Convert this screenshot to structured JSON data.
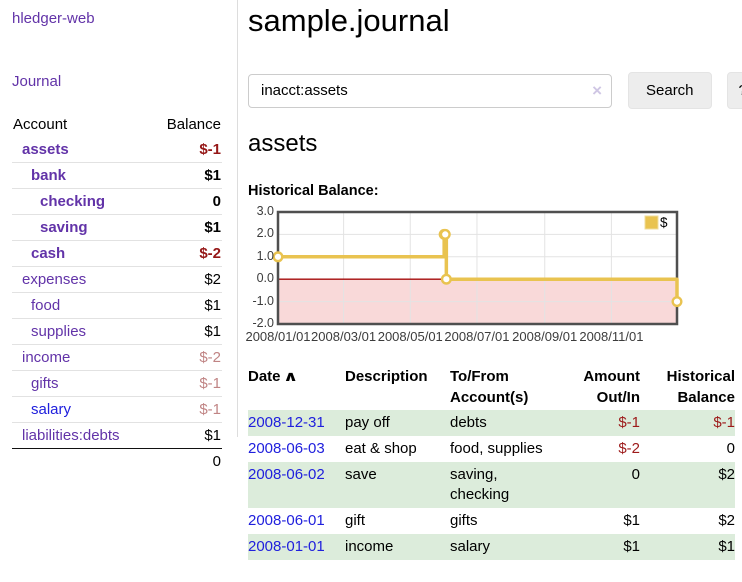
{
  "app": {
    "brand": "hledger-web"
  },
  "sidebar": {
    "nav": {
      "journal": "Journal"
    },
    "columns": {
      "account": "Account",
      "balance": "Balance"
    },
    "accounts": [
      {
        "name": "assets",
        "depth": 1,
        "balance": "$-1",
        "bold": true,
        "negative": "strong"
      },
      {
        "name": "bank",
        "depth": 2,
        "balance": "$1",
        "bold": true,
        "negative": null
      },
      {
        "name": "checking",
        "depth": 3,
        "balance": "0",
        "bold": true,
        "negative": null
      },
      {
        "name": "saving",
        "depth": 3,
        "balance": "$1",
        "bold": true,
        "negative": null
      },
      {
        "name": "cash",
        "depth": 2,
        "balance": "$-2",
        "bold": true,
        "negative": "strong"
      },
      {
        "name": "expenses",
        "depth": 1,
        "balance": "$2",
        "bold": false,
        "negative": null
      },
      {
        "name": "food",
        "depth": 2,
        "balance": "$1",
        "bold": false,
        "negative": null
      },
      {
        "name": "supplies",
        "depth": 2,
        "balance": "$1",
        "bold": false,
        "negative": null
      },
      {
        "name": "income",
        "depth": 1,
        "balance": "$-2",
        "bold": false,
        "negative": "light"
      },
      {
        "name": "gifts",
        "depth": 2,
        "balance": "$-1",
        "bold": false,
        "negative": "light"
      },
      {
        "name": "salary",
        "depth": 2,
        "balance": "$-1",
        "bold": false,
        "negative": "light",
        "link_style": "blue"
      },
      {
        "name": "liabilities:debts",
        "depth": 1,
        "balance": "$1",
        "bold": false,
        "negative": null
      }
    ],
    "total": "0"
  },
  "header": {
    "title": "sample.journal"
  },
  "search": {
    "value": "inacct:assets",
    "clear_icon": "×",
    "button_label": "Search",
    "help_label": "?"
  },
  "account_page": {
    "heading": "assets",
    "chart_label": "Historical Balance:"
  },
  "chart_data": {
    "type": "line",
    "steps": true,
    "title": "Historical Balance:",
    "ylim": [
      -2,
      3
    ],
    "x_range_days": 365,
    "yticks": [
      {
        "value": 3,
        "label": "3.0"
      },
      {
        "value": 2,
        "label": "2.0"
      },
      {
        "value": 1,
        "label": "1.0"
      },
      {
        "value": 0,
        "label": "0.0"
      },
      {
        "value": -1,
        "label": "-1.0"
      },
      {
        "value": -2,
        "label": "-2.0"
      }
    ],
    "xticks": [
      {
        "day": 0,
        "label": "2008/01/01"
      },
      {
        "day": 60,
        "label": "2008/03/01"
      },
      {
        "day": 121,
        "label": "2008/05/01"
      },
      {
        "day": 182,
        "label": "2008/07/01"
      },
      {
        "day": 244,
        "label": "2008/09/01"
      },
      {
        "day": 305,
        "label": "2008/11/01"
      }
    ],
    "series": [
      {
        "name": "$",
        "color": "#e9c350",
        "points": [
          {
            "date": "2008-01-01",
            "day": 0,
            "value": 1
          },
          {
            "date": "2008-06-01",
            "day": 152,
            "value": 2
          },
          {
            "date": "2008-06-02",
            "day": 153,
            "value": 2
          },
          {
            "date": "2008-06-03",
            "day": 154,
            "value": 0
          },
          {
            "date": "2008-12-31",
            "day": 365,
            "value": -1
          }
        ]
      }
    ],
    "legend": {
      "label": "$",
      "position": "top-right"
    },
    "negative_region_color": "#f9d9d9",
    "zero_line_color": "#a40b0b",
    "grid_color": "#e3e3e3",
    "border_color": "#4f4f4f"
  },
  "register": {
    "columns": [
      "Date",
      "Description",
      "To/From Account(s)",
      "Amount Out/In",
      "Historical Balance"
    ],
    "sort_indicator": "∧",
    "rows": [
      {
        "date": "2008-12-31",
        "description": "pay off",
        "accounts": "debts",
        "amount": "$-1",
        "amount_negative": true,
        "balance": "$-1",
        "balance_negative": true
      },
      {
        "date": "2008-06-03",
        "description": "eat & shop",
        "accounts": "food, supplies",
        "amount": "$-2",
        "amount_negative": true,
        "balance": "0",
        "balance_negative": false
      },
      {
        "date": "2008-06-02",
        "description": "save",
        "accounts": "saving, checking",
        "amount": "0",
        "amount_negative": false,
        "balance": "$2",
        "balance_negative": false
      },
      {
        "date": "2008-06-01",
        "description": "gift",
        "accounts": "gifts",
        "amount": "$1",
        "amount_negative": false,
        "balance": "$2",
        "balance_negative": false
      },
      {
        "date": "2008-01-01",
        "description": "income",
        "accounts": "salary",
        "amount": "$1",
        "amount_negative": false,
        "balance": "$1",
        "balance_negative": false
      }
    ]
  },
  "colors": {
    "link_purple": "#6233a8",
    "link_blue": "#2020dd",
    "negative_strong": "#951717",
    "negative_light": "#c08484",
    "row_stripe_green": "#dcecdb",
    "chart_gold": "#e9c350"
  }
}
